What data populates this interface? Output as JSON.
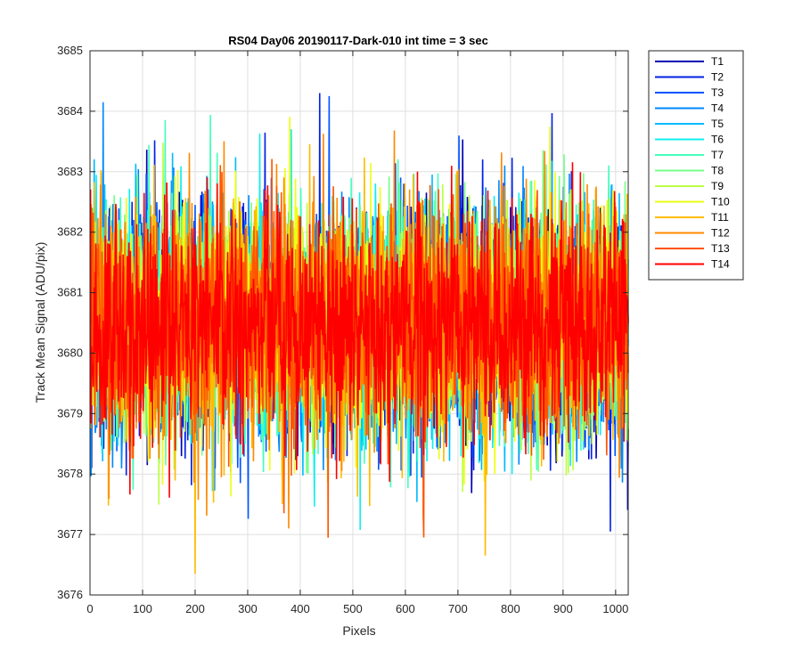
{
  "chart_data": {
    "type": "line",
    "title": "RS04 Day06 20190117-Dark-010 int time = 3 sec",
    "xlabel": "Pixels",
    "ylabel": "Track Mean Signal (ADU/pix)",
    "xlim": [
      0,
      1024
    ],
    "ylim": [
      3676,
      3685
    ],
    "xticks": [
      0,
      100,
      200,
      300,
      400,
      500,
      600,
      700,
      800,
      900,
      1000
    ],
    "yticks": [
      3676,
      3677,
      3678,
      3679,
      3680,
      3681,
      3682,
      3683,
      3684,
      3685
    ],
    "grid": true,
    "legend_position": "outside-top-right",
    "series_mean": 3680.5,
    "series_std": 0.95,
    "points_per_series": 1024,
    "series": [
      {
        "name": "T1",
        "color": "#0000b3"
      },
      {
        "name": "T2",
        "color": "#0022e6"
      },
      {
        "name": "T3",
        "color": "#0055ff"
      },
      {
        "name": "T4",
        "color": "#0088ff"
      },
      {
        "name": "T5",
        "color": "#00bbff"
      },
      {
        "name": "T6",
        "color": "#11eeee"
      },
      {
        "name": "T7",
        "color": "#44ffbb"
      },
      {
        "name": "T8",
        "color": "#77ff88"
      },
      {
        "name": "T9",
        "color": "#bbff44"
      },
      {
        "name": "T10",
        "color": "#eeff11"
      },
      {
        "name": "T11",
        "color": "#ffbb00"
      },
      {
        "name": "T12",
        "color": "#ff8800"
      },
      {
        "name": "T13",
        "color": "#ff5500"
      },
      {
        "name": "T14",
        "color": "#ff0000"
      }
    ],
    "notable_extremes": [
      {
        "series": "T2",
        "x": 437,
        "y": 3684.3
      },
      {
        "series": "T3",
        "x": 455,
        "y": 3684.25
      },
      {
        "series": "T11",
        "x": 200,
        "y": 3676.35
      },
      {
        "series": "T11",
        "x": 752,
        "y": 3676.65
      },
      {
        "series": "T13",
        "x": 635,
        "y": 3676.95
      },
      {
        "series": "T2",
        "x": 990,
        "y": 3677.05
      },
      {
        "series": "T4",
        "x": 25,
        "y": 3684.15
      },
      {
        "series": "T12",
        "x": 378,
        "y": 3677.1
      }
    ]
  }
}
